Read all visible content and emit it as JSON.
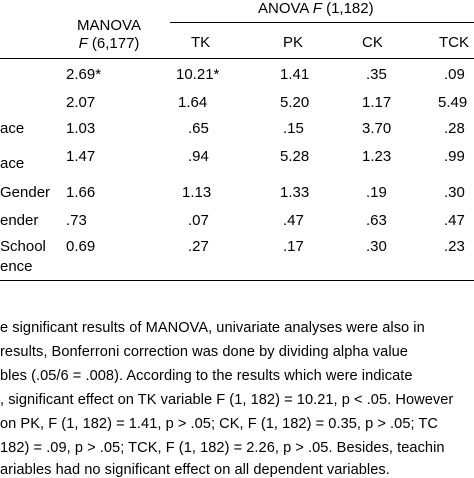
{
  "table": {
    "anova_header": "ANOVA ",
    "anova_header_italic": "F",
    "anova_header_rest": " (1,182)",
    "manova_header_line1": "MANOVA",
    "manova_header_line2_italic": "F",
    "manova_header_line2_rest": " (6,177)",
    "columns": [
      "TK",
      "PK",
      "CK",
      "TCK"
    ],
    "rows": [
      {
        "label": "",
        "manova": "2.69*",
        "tk": "10.21*",
        "pk": "1.41",
        "ck": ".35",
        "tck": ".09"
      },
      {
        "label": "",
        "manova": "2.07",
        "tk": "1.64",
        "pk": "5.20",
        "ck": "1.17",
        "tck": "5.49"
      },
      {
        "label": "ace",
        "manova": "1.03",
        "tk": ".65",
        "pk": ".15",
        "ck": "3.70",
        "tck": ".28"
      },
      {
        "label": "ace",
        "manova": "1.47",
        "tk": ".94",
        "pk": "5.28",
        "ck": "1.23",
        "tck": ".99"
      },
      {
        "label": "Gender",
        "manova": "1.66",
        "tk": "1.13",
        "pk": "1.33",
        "ck": ".19",
        "tck": ".30"
      },
      {
        "label": "ender",
        "manova": ".73",
        "tk": ".07",
        "pk": ".47",
        "ck": ".63",
        "tck": ".47"
      },
      {
        "label": "School",
        "label2": "ence",
        "manova": "0.69",
        "tk": ".27",
        "pk": ".17",
        "ck": ".30",
        "tck": ".23"
      }
    ]
  },
  "paragraph": [
    "e significant results of MANOVA, univariate analyses were also in",
    "results, Bonferroni correction was done by dividing alpha value",
    "bles (.05/6 = .008). According to the results which were indicate",
    ", significant effect on TK variable F (1, 182) = 10.21, p < .05.  However",
    "on PK, F (1, 182) = 1.41, p > .05; CK, F (1, 182) = 0.35, p > .05; TC",
    "182) = .09, p > .05; TCK, F (1, 182) = 2.26, p > .05. Besides, teachin",
    "ariables had no significant effect on all dependent variables."
  ]
}
